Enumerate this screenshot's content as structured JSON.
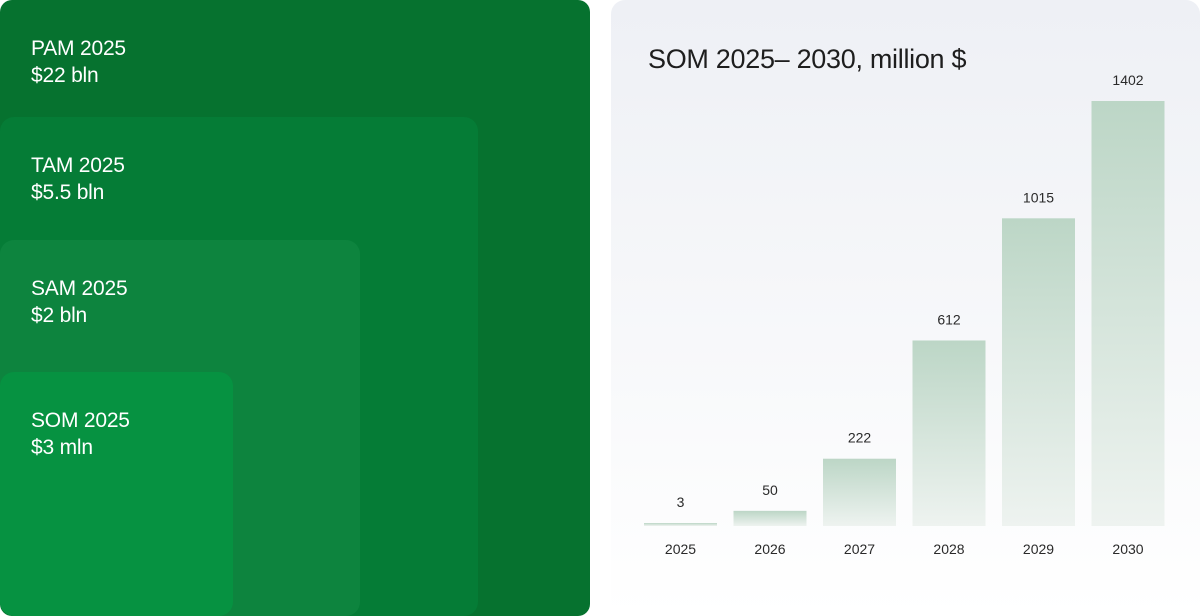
{
  "markets": [
    {
      "name": "PAM 2025",
      "value": "$22 bln"
    },
    {
      "name": "TAM 2025",
      "value": "$5.5 bln"
    },
    {
      "name": "SAM 2025",
      "value": "$2 bln"
    },
    {
      "name": "SOM 2025",
      "value": "$3 mln"
    }
  ],
  "colors": {
    "panel": "#06722f",
    "bar_top": "#bcd6c6",
    "bar_bottom": "#eef3f0"
  },
  "chart_data": {
    "type": "bar",
    "title": "SOM 2025– 2030, million $",
    "categories": [
      "2025",
      "2026",
      "2027",
      "2028",
      "2029",
      "2030"
    ],
    "values": [
      3,
      50,
      222,
      612,
      1015,
      1402
    ],
    "data_labels": [
      "3",
      "50",
      "222",
      "612",
      "1015",
      "1402"
    ],
    "xlabel": "",
    "ylabel": "",
    "ylim": [
      0,
      1402
    ],
    "grid": false,
    "legend": "none"
  }
}
